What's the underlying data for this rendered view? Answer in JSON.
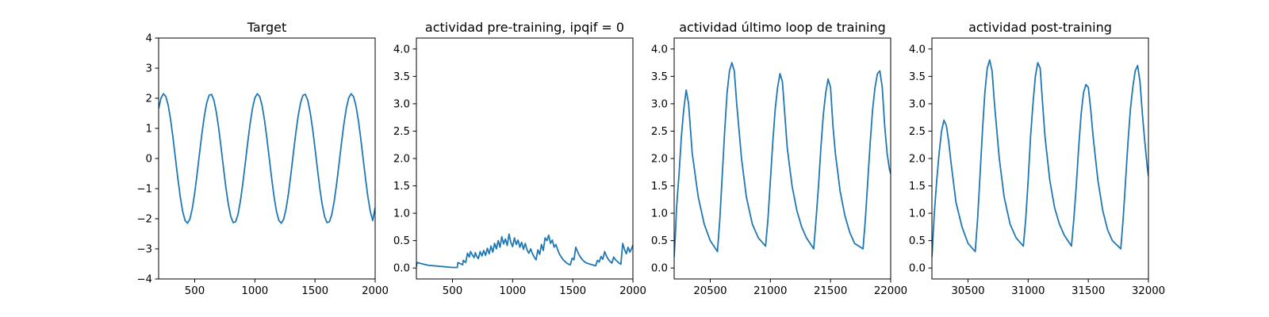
{
  "chart_data": [
    {
      "type": "line",
      "title": "Target",
      "xlabel": "",
      "ylabel": "",
      "xlim": [
        200,
        2000
      ],
      "ylim": [
        -4,
        4
      ],
      "xticks": [
        500,
        1000,
        1500,
        2000
      ],
      "xtick_labels": [
        "500",
        "1000",
        "1500",
        "2000"
      ],
      "yticks": [
        -4,
        -3,
        -2,
        -1,
        0,
        1,
        2,
        3,
        4
      ],
      "ytick_labels": [
        "−4",
        "−3",
        "−2",
        "−1",
        "0",
        "1",
        "2",
        "3",
        "4"
      ],
      "grid": false,
      "color": "#1f77b4",
      "series": [
        {
          "x": [
            200,
            220,
            240,
            260,
            280,
            300,
            320,
            340,
            360,
            380,
            400,
            420,
            440,
            460,
            480,
            500,
            520,
            540,
            560,
            580,
            600,
            620,
            640,
            660,
            680,
            700,
            720,
            740,
            760,
            780,
            800,
            820,
            840,
            860,
            880,
            900,
            920,
            940,
            960,
            980,
            1000,
            1020,
            1040,
            1060,
            1080,
            1100,
            1120,
            1140,
            1160,
            1180,
            1200,
            1220,
            1240,
            1260,
            1280,
            1300,
            1320,
            1340,
            1360,
            1380,
            1400,
            1420,
            1440,
            1460,
            1480,
            1500,
            1520,
            1540,
            1560,
            1580,
            1600,
            1620,
            1640,
            1660,
            1680,
            1700,
            1720,
            1740,
            1760,
            1780,
            1800,
            1820,
            1840,
            1860,
            1880,
            1900,
            1920,
            1940,
            1960,
            1980,
            2000
          ],
          "y": [
            1.66,
            2.01,
            2.15,
            2.06,
            1.76,
            1.28,
            0.67,
            0.0,
            -0.67,
            -1.28,
            -1.76,
            -2.06,
            -2.15,
            -2.01,
            -1.66,
            -1.14,
            -0.51,
            0.17,
            0.83,
            1.41,
            1.85,
            2.1,
            2.13,
            1.93,
            1.53,
            0.99,
            0.34,
            -0.34,
            -0.99,
            -1.53,
            -1.93,
            -2.13,
            -2.1,
            -1.85,
            -1.41,
            -0.83,
            -0.17,
            0.51,
            1.14,
            1.66,
            2.01,
            2.15,
            2.06,
            1.76,
            1.28,
            0.67,
            0.0,
            -0.67,
            -1.28,
            -1.76,
            -2.06,
            -2.15,
            -2.01,
            -1.66,
            -1.14,
            -0.51,
            0.17,
            0.83,
            1.41,
            1.85,
            2.1,
            2.13,
            1.93,
            1.53,
            0.99,
            0.34,
            -0.34,
            -0.99,
            -1.53,
            -1.93,
            -2.13,
            -2.1,
            -1.85,
            -1.41,
            -0.83,
            -0.17,
            0.51,
            1.14,
            1.66,
            2.01,
            2.15,
            2.06,
            1.76,
            1.28,
            0.67,
            0.0,
            -0.67,
            -1.28,
            -1.76,
            -2.06,
            -1.63
          ]
        }
      ]
    },
    {
      "type": "line",
      "title": "actividad pre-training, ipqif = 0",
      "xlabel": "",
      "ylabel": "",
      "xlim": [
        200,
        2000
      ],
      "ylim": [
        -0.2,
        4.2
      ],
      "xticks": [
        500,
        1000,
        1500,
        2000
      ],
      "xtick_labels": [
        "500",
        "1000",
        "1500",
        "2000"
      ],
      "yticks": [
        0,
        0.5,
        1,
        1.5,
        2,
        2.5,
        3,
        3.5,
        4
      ],
      "ytick_labels": [
        "0.0",
        "0.5",
        "1.0",
        "1.5",
        "2.0",
        "2.5",
        "3.0",
        "3.5",
        "4.0"
      ],
      "grid": false,
      "color": "#1f77b4",
      "series": [
        {
          "x": [
            200,
            206,
            225,
            260,
            300,
            350,
            400,
            450,
            500,
            540,
            545,
            565,
            585,
            590,
            610,
            625,
            640,
            650,
            665,
            680,
            690,
            700,
            715,
            730,
            745,
            760,
            775,
            790,
            805,
            820,
            835,
            850,
            865,
            880,
            895,
            910,
            925,
            940,
            955,
            970,
            985,
            1000,
            1015,
            1030,
            1045,
            1060,
            1075,
            1090,
            1105,
            1120,
            1135,
            1150,
            1165,
            1180,
            1195,
            1210,
            1225,
            1240,
            1255,
            1270,
            1285,
            1300,
            1315,
            1330,
            1345,
            1360,
            1375,
            1390,
            1405,
            1420,
            1435,
            1450,
            1465,
            1480,
            1495,
            1510,
            1525,
            1540,
            1555,
            1570,
            1585,
            1600,
            1615,
            1630,
            1645,
            1660,
            1675,
            1690,
            1705,
            1720,
            1735,
            1750,
            1765,
            1780,
            1795,
            1810,
            1825,
            1840,
            1855,
            1870,
            1885,
            1900,
            1915,
            1930,
            1945,
            1960,
            1975,
            1990,
            2000
          ],
          "y": [
            0.02,
            0.1,
            0.09,
            0.07,
            0.05,
            0.04,
            0.03,
            0.02,
            0.01,
            0.01,
            0.1,
            0.08,
            0.06,
            0.14,
            0.1,
            0.27,
            0.2,
            0.3,
            0.24,
            0.19,
            0.28,
            0.22,
            0.17,
            0.3,
            0.22,
            0.32,
            0.23,
            0.36,
            0.26,
            0.4,
            0.29,
            0.45,
            0.35,
            0.5,
            0.38,
            0.57,
            0.44,
            0.53,
            0.41,
            0.62,
            0.47,
            0.39,
            0.55,
            0.43,
            0.51,
            0.38,
            0.47,
            0.34,
            0.45,
            0.33,
            0.27,
            0.35,
            0.26,
            0.2,
            0.15,
            0.33,
            0.25,
            0.43,
            0.32,
            0.55,
            0.5,
            0.6,
            0.45,
            0.51,
            0.38,
            0.43,
            0.33,
            0.25,
            0.2,
            0.15,
            0.12,
            0.09,
            0.07,
            0.06,
            0.18,
            0.15,
            0.38,
            0.3,
            0.23,
            0.18,
            0.14,
            0.11,
            0.09,
            0.08,
            0.07,
            0.06,
            0.05,
            0.04,
            0.14,
            0.11,
            0.21,
            0.16,
            0.3,
            0.22,
            0.16,
            0.12,
            0.09,
            0.2,
            0.15,
            0.12,
            0.09,
            0.07,
            0.45,
            0.34,
            0.26,
            0.38,
            0.29,
            0.36,
            0.42
          ]
        }
      ]
    },
    {
      "type": "line",
      "title": "actividad último loop de training",
      "xlabel": "",
      "ylabel": "",
      "xlim": [
        20200,
        22000
      ],
      "ylim": [
        -0.2,
        4.2
      ],
      "xticks": [
        20500,
        21000,
        21500,
        22000
      ],
      "xtick_labels": [
        "20500",
        "21000",
        "21500",
        "22000"
      ],
      "yticks": [
        0,
        0.5,
        1,
        1.5,
        2,
        2.5,
        3,
        3.5,
        4
      ],
      "ytick_labels": [
        "0.0",
        "0.5",
        "1.0",
        "1.5",
        "2.0",
        "2.5",
        "3.0",
        "3.5",
        "4.0"
      ],
      "grid": false,
      "color": "#1f77b4",
      "series": [
        {
          "x": [
            20200,
            20210,
            20220,
            20240,
            20260,
            20280,
            20300,
            20320,
            20350,
            20400,
            20450,
            20500,
            20560,
            20580,
            20600,
            20620,
            20640,
            20660,
            20680,
            20700,
            20720,
            20760,
            20800,
            20850,
            20900,
            20960,
            20980,
            21000,
            21020,
            21040,
            21060,
            21080,
            21100,
            21120,
            21140,
            21180,
            21220,
            21260,
            21300,
            21360,
            21380,
            21400,
            21420,
            21440,
            21460,
            21480,
            21500,
            21520,
            21540,
            21580,
            21620,
            21660,
            21700,
            21770,
            21790,
            21810,
            21830,
            21850,
            21870,
            21890,
            21910,
            21930,
            21950,
            21970,
            21990,
            22000
          ],
          "y": [
            0.2,
            0.6,
            1.1,
            1.7,
            2.4,
            2.9,
            3.25,
            3.0,
            2.1,
            1.3,
            0.8,
            0.5,
            0.3,
            0.9,
            1.7,
            2.5,
            3.2,
            3.6,
            3.75,
            3.6,
            3.0,
            2.0,
            1.3,
            0.8,
            0.55,
            0.4,
            0.9,
            1.6,
            2.3,
            2.9,
            3.3,
            3.55,
            3.4,
            2.8,
            2.2,
            1.5,
            1.05,
            0.75,
            0.55,
            0.35,
            0.9,
            1.5,
            2.2,
            2.8,
            3.2,
            3.45,
            3.3,
            2.6,
            2.1,
            1.4,
            0.95,
            0.65,
            0.45,
            0.35,
            0.9,
            1.6,
            2.3,
            2.9,
            3.3,
            3.55,
            3.6,
            3.3,
            2.6,
            2.1,
            1.8,
            1.72
          ]
        }
      ]
    },
    {
      "type": "line",
      "title": "actividad post-training",
      "xlabel": "",
      "ylabel": "",
      "xlim": [
        30200,
        32000
      ],
      "ylim": [
        -0.2,
        4.2
      ],
      "xticks": [
        30500,
        31000,
        31500,
        32000
      ],
      "xtick_labels": [
        "30500",
        "31000",
        "31500",
        "32000"
      ],
      "yticks": [
        0,
        0.5,
        1,
        1.5,
        2,
        2.5,
        3,
        3.5,
        4
      ],
      "ytick_labels": [
        "0.0",
        "0.5",
        "1.0",
        "1.5",
        "2.0",
        "2.5",
        "3.0",
        "3.5",
        "4.0"
      ],
      "grid": false,
      "color": "#1f77b4",
      "series": [
        {
          "x": [
            30200,
            30210,
            30220,
            30240,
            30260,
            30280,
            30300,
            30320,
            30340,
            30360,
            30400,
            30450,
            30500,
            30560,
            30580,
            30600,
            30620,
            30640,
            30660,
            30680,
            30700,
            30720,
            30760,
            30800,
            30850,
            30900,
            30960,
            30980,
            31000,
            31020,
            31040,
            31060,
            31080,
            31100,
            31120,
            31140,
            31180,
            31220,
            31260,
            31300,
            31360,
            31380,
            31400,
            31420,
            31440,
            31460,
            31480,
            31500,
            31520,
            31540,
            31580,
            31620,
            31660,
            31700,
            31770,
            31790,
            31810,
            31830,
            31850,
            31870,
            31890,
            31910,
            31930,
            31950,
            31970,
            31990,
            32000
          ],
          "y": [
            0.2,
            0.6,
            1.0,
            1.6,
            2.1,
            2.5,
            2.7,
            2.6,
            2.3,
            1.9,
            1.2,
            0.75,
            0.45,
            0.3,
            0.9,
            1.7,
            2.5,
            3.2,
            3.65,
            3.8,
            3.6,
            3.0,
            2.0,
            1.3,
            0.8,
            0.55,
            0.4,
            0.9,
            1.6,
            2.4,
            3.0,
            3.5,
            3.75,
            3.65,
            3.0,
            2.4,
            1.6,
            1.1,
            0.8,
            0.6,
            0.4,
            0.9,
            1.5,
            2.2,
            2.8,
            3.2,
            3.35,
            3.3,
            2.9,
            2.4,
            1.6,
            1.05,
            0.7,
            0.5,
            0.35,
            0.9,
            1.6,
            2.3,
            2.9,
            3.3,
            3.6,
            3.7,
            3.4,
            2.8,
            2.3,
            1.85,
            1.68
          ]
        }
      ]
    }
  ]
}
